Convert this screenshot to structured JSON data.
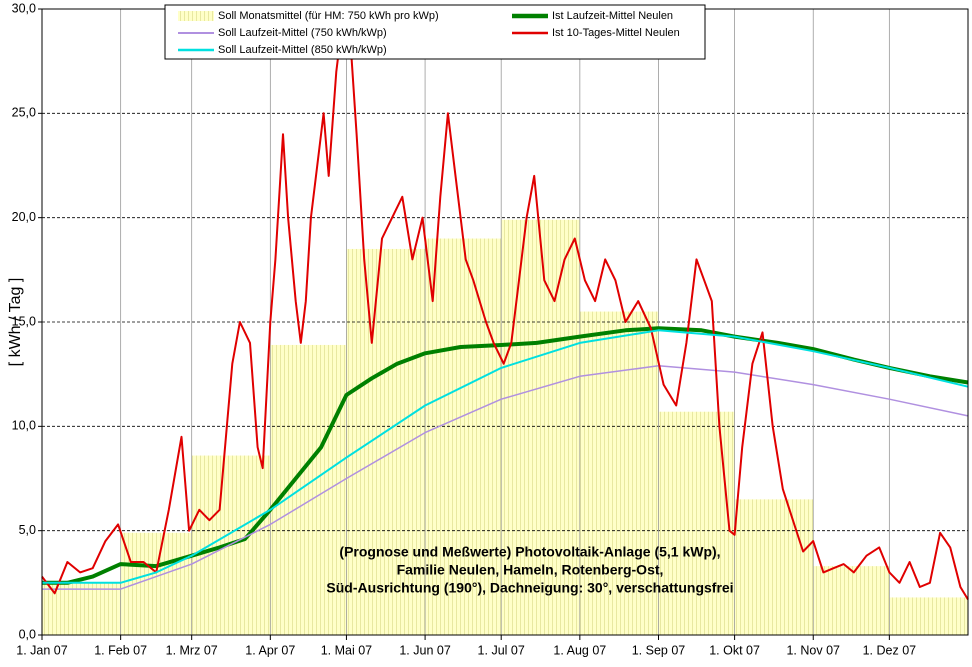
{
  "chart_data": {
    "type": "combo",
    "ylabel": "[ kWh / Tag ]",
    "xlim": [
      0,
      365
    ],
    "ylim": [
      0,
      30
    ],
    "xticks": [
      {
        "value": 0,
        "label": "1. Jan 07"
      },
      {
        "value": 31,
        "label": "1. Feb 07"
      },
      {
        "value": 59,
        "label": "1. Mrz 07"
      },
      {
        "value": 90,
        "label": "1. Apr 07"
      },
      {
        "value": 120,
        "label": "1. Mai 07"
      },
      {
        "value": 151,
        "label": "1. Jun 07"
      },
      {
        "value": 181,
        "label": "1. Jul 07"
      },
      {
        "value": 212,
        "label": "1. Aug 07"
      },
      {
        "value": 243,
        "label": "1. Sep 07"
      },
      {
        "value": 273,
        "label": "1. Okt 07"
      },
      {
        "value": 304,
        "label": "1. Nov 07"
      },
      {
        "value": 334,
        "label": "1. Dez 07"
      }
    ],
    "yticks": [
      {
        "value": 0,
        "label": "0,0"
      },
      {
        "value": 5,
        "label": "5,0"
      },
      {
        "value": 10,
        "label": "10,0"
      },
      {
        "value": 15,
        "label": "15,0"
      },
      {
        "value": 20,
        "label": "20,0"
      },
      {
        "value": 25,
        "label": "25,0"
      },
      {
        "value": 30,
        "label": "30,0"
      }
    ],
    "grid": true,
    "annotation": [
      "(Prognose und Meßwerte)  Photovoltaik-Anlage (5,1 kWp),",
      "Familie Neulen, Hameln, Rotenberg-Ost,",
      "Süd-Ausrichtung (190°), Dachneigung: 30°, verschattungsfrei"
    ],
    "series": [
      {
        "name": "Soll Monatsmittel (für HM: 750 kWh pro kWp)",
        "type": "bar",
        "color": "#ffffc0",
        "bins": [
          0,
          31,
          59,
          90,
          120,
          151,
          181,
          212,
          243,
          273,
          304,
          334,
          365
        ],
        "values": [
          2.5,
          4.9,
          8.6,
          13.9,
          18.5,
          19.0,
          19.9,
          15.5,
          10.7,
          6.5,
          3.3,
          1.8
        ]
      },
      {
        "name": "Ist Laufzeit-Mittel Neulen",
        "type": "line",
        "color": "#008000",
        "width": 4,
        "x": [
          0,
          10,
          20,
          31,
          45,
          59,
          70,
          80,
          90,
          100,
          110,
          120,
          130,
          140,
          151,
          165,
          181,
          195,
          212,
          230,
          243,
          260,
          273,
          290,
          304,
          320,
          334,
          350,
          365
        ],
        "values": [
          2.5,
          2.5,
          2.8,
          3.4,
          3.3,
          3.8,
          4.2,
          4.6,
          6.0,
          7.5,
          9.0,
          11.5,
          12.3,
          13.0,
          13.5,
          13.8,
          13.9,
          14.0,
          14.3,
          14.6,
          14.7,
          14.6,
          14.3,
          14.0,
          13.7,
          13.2,
          12.8,
          12.4,
          12.1
        ]
      },
      {
        "name": "Soll Laufzeit-Mittel (750 kWh/kWp)",
        "type": "line",
        "color": "#b090e0",
        "width": 1.5,
        "x": [
          0,
          31,
          45,
          59,
          90,
          120,
          151,
          181,
          212,
          243,
          273,
          304,
          334,
          365
        ],
        "values": [
          2.2,
          2.2,
          2.8,
          3.4,
          5.3,
          7.5,
          9.7,
          11.3,
          12.4,
          12.9,
          12.6,
          12.0,
          11.3,
          10.5
        ]
      },
      {
        "name": "Ist 10-Tages-Mittel Neulen",
        "type": "line",
        "color": "#e00000",
        "width": 2,
        "x": [
          0,
          5,
          10,
          15,
          20,
          25,
          30,
          35,
          40,
          45,
          50,
          55,
          58,
          62,
          66,
          70,
          75,
          78,
          82,
          85,
          87,
          90,
          92,
          95,
          97,
          100,
          102,
          104,
          106,
          108,
          111,
          113,
          116,
          118,
          121,
          124,
          127,
          130,
          134,
          138,
          142,
          146,
          150,
          154,
          157,
          160,
          163,
          167,
          170,
          175,
          178,
          182,
          185,
          188,
          191,
          194,
          198,
          202,
          206,
          210,
          214,
          218,
          222,
          226,
          230,
          235,
          240,
          245,
          250,
          254,
          258,
          261,
          264,
          267,
          271,
          273,
          276,
          280,
          284,
          288,
          292,
          296,
          300,
          304,
          308,
          312,
          316,
          320,
          325,
          330,
          334,
          338,
          342,
          346,
          350,
          354,
          358,
          362,
          365
        ],
        "values": [
          2.8,
          2.0,
          3.5,
          3.0,
          3.2,
          4.5,
          5.3,
          3.5,
          3.5,
          3.0,
          6.0,
          9.5,
          5.0,
          6.0,
          5.5,
          6.0,
          13.0,
          15.0,
          14.0,
          9.0,
          8.0,
          15.0,
          18.0,
          24.0,
          20.0,
          16.0,
          14.0,
          16.0,
          20.0,
          22.0,
          25.0,
          22.0,
          27.0,
          29.0,
          29.5,
          24.0,
          18.0,
          14.0,
          19.0,
          20.0,
          21.0,
          18.0,
          20.0,
          16.0,
          21.0,
          25.0,
          22.0,
          18.0,
          17.0,
          15.0,
          14.0,
          13.0,
          14.0,
          17.0,
          20.0,
          22.0,
          17.0,
          16.0,
          18.0,
          19.0,
          17.0,
          16.0,
          18.0,
          17.0,
          15.0,
          16.0,
          14.7,
          12.0,
          11.0,
          14.0,
          18.0,
          17.0,
          16.0,
          10.0,
          5.0,
          4.8,
          9.0,
          13.0,
          14.5,
          10.0,
          7.0,
          5.5,
          4.0,
          4.5,
          3.0,
          3.2,
          3.4,
          3.0,
          3.8,
          4.2,
          3.0,
          2.5,
          3.5,
          2.3,
          2.5,
          4.9,
          4.2,
          2.3,
          1.7
        ]
      },
      {
        "name": "Soll Laufzeit-Mittel (850 kWh/kWp)",
        "type": "line",
        "color": "#00e0e0",
        "width": 2,
        "x": [
          0,
          31,
          45,
          59,
          90,
          120,
          151,
          181,
          212,
          243,
          273,
          304,
          334,
          365
        ],
        "values": [
          2.5,
          2.5,
          3.0,
          3.8,
          6.0,
          8.5,
          11.0,
          12.8,
          14.0,
          14.6,
          14.3,
          13.6,
          12.8,
          11.9
        ]
      }
    ]
  }
}
